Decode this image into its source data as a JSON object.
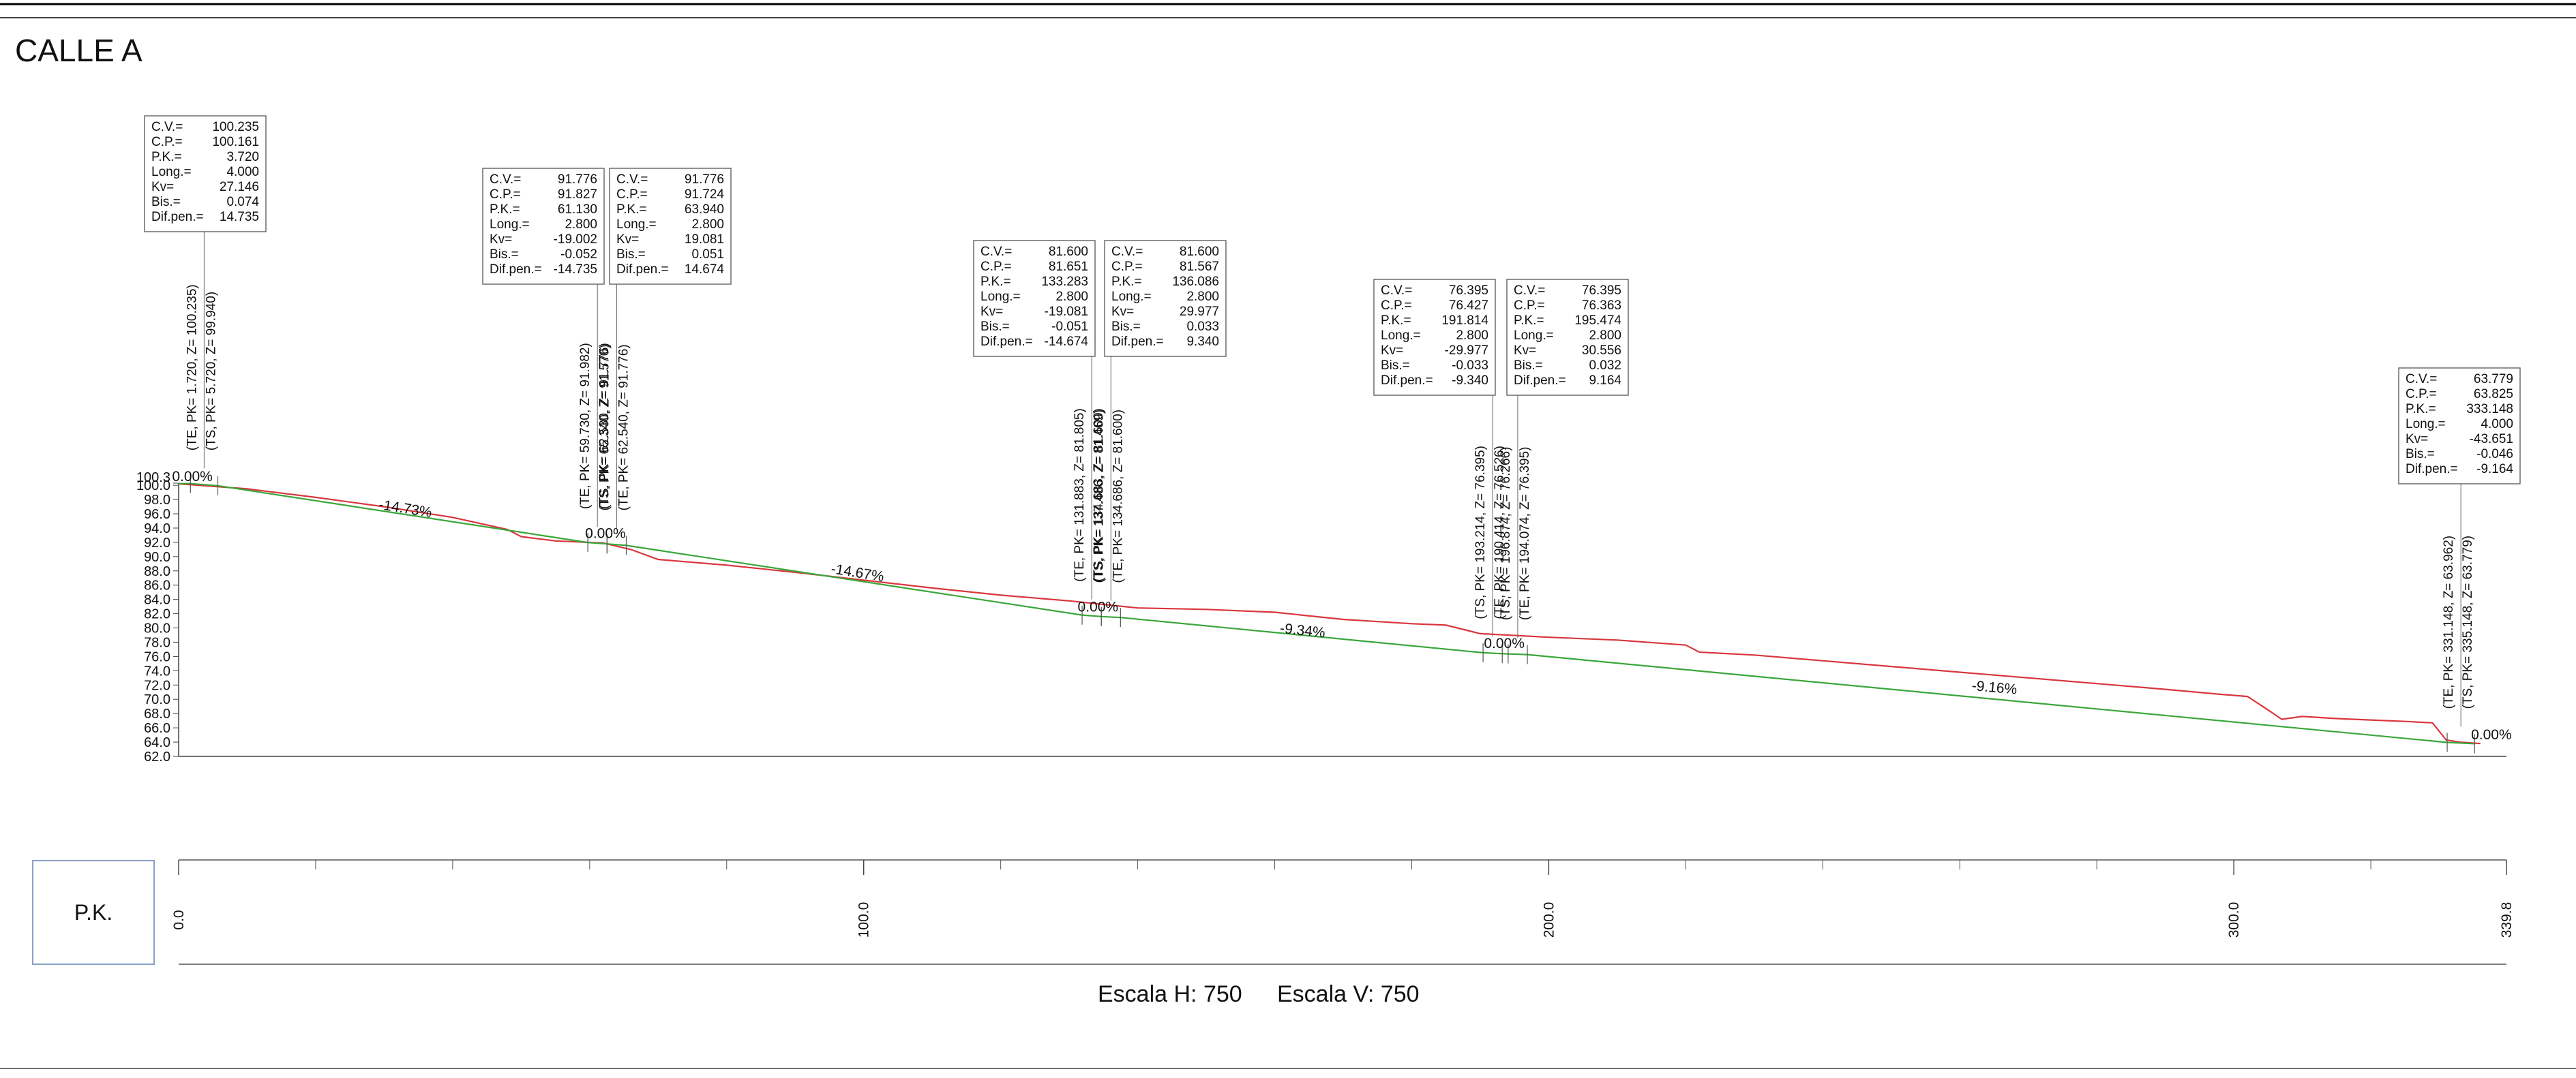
{
  "drawing": {
    "title": "CALLE A",
    "pk_box_label": "P.K.",
    "scale_h_label": "Escala H: 750",
    "scale_v_label": "Escala V: 750"
  },
  "profile": {
    "x_range": [
      0,
      339.8
    ],
    "z_range": [
      62.0,
      100.3
    ],
    "y_tick_labels": [
      "100.3",
      "100.0",
      "98.0",
      "96.0",
      "94.0",
      "92.0",
      "90.0",
      "88.0",
      "86.0",
      "84.0",
      "82.0",
      "80.0",
      "78.0",
      "76.0",
      "74.0",
      "72.0",
      "70.0",
      "68.0",
      "66.0",
      "64.0",
      "62.0"
    ],
    "pk_axis_labels": [
      {
        "pk": 0,
        "label": "0.0"
      },
      {
        "pk": 100,
        "label": "100.0"
      },
      {
        "pk": 200,
        "label": "200.0"
      },
      {
        "pk": 300,
        "label": "300.0"
      },
      {
        "pk": 339.8,
        "label": "339.8"
      }
    ],
    "grade_line": {
      "color": "#3aa63a",
      "points": [
        [
          0,
          100.235
        ],
        [
          1.72,
          100.235
        ],
        [
          5.72,
          99.94
        ],
        [
          59.73,
          91.982
        ],
        [
          62.53,
          91.776
        ],
        [
          65.34,
          91.57
        ],
        [
          131.883,
          81.805
        ],
        [
          134.683,
          81.6
        ],
        [
          137.486,
          81.469
        ],
        [
          190.414,
          76.526
        ],
        [
          193.214,
          76.395
        ],
        [
          196.874,
          76.266
        ],
        [
          331.148,
          63.962
        ],
        [
          335.148,
          63.779
        ]
      ]
    },
    "terrain_line": {
      "color": "#d9363e",
      "points": [
        [
          0,
          100.2
        ],
        [
          10,
          99.5
        ],
        [
          20,
          98.3
        ],
        [
          30,
          97.0
        ],
        [
          40,
          95.5
        ],
        [
          48,
          93.8
        ],
        [
          50,
          92.8
        ],
        [
          55,
          92.2
        ],
        [
          62,
          91.9
        ],
        [
          66,
          91.0
        ],
        [
          70,
          89.6
        ],
        [
          80,
          88.8
        ],
        [
          90,
          87.8
        ],
        [
          100,
          86.7
        ],
        [
          110,
          85.6
        ],
        [
          120,
          84.6
        ],
        [
          130,
          83.8
        ],
        [
          140,
          82.8
        ],
        [
          150,
          82.6
        ],
        [
          160,
          82.2
        ],
        [
          170,
          81.2
        ],
        [
          180,
          80.6
        ],
        [
          185,
          80.4
        ],
        [
          190,
          79.2
        ],
        [
          200,
          78.7
        ],
        [
          210,
          78.3
        ],
        [
          220,
          77.6
        ],
        [
          222,
          76.6
        ],
        [
          230,
          76.2
        ],
        [
          240,
          75.4
        ],
        [
          250,
          74.6
        ],
        [
          260,
          73.8
        ],
        [
          270,
          73.0
        ],
        [
          280,
          72.2
        ],
        [
          290,
          71.4
        ],
        [
          298,
          70.7
        ],
        [
          302,
          70.4
        ],
        [
          305,
          68.5
        ],
        [
          307,
          67.2
        ],
        [
          310,
          67.6
        ],
        [
          315,
          67.3
        ],
        [
          320,
          67.1
        ],
        [
          325,
          66.9
        ],
        [
          329,
          66.7
        ],
        [
          331,
          64.3
        ],
        [
          333,
          64.0
        ],
        [
          336,
          63.8
        ]
      ]
    },
    "slope_labels": [
      {
        "text": "0.00%",
        "pk": 2.0,
        "z": 100.6
      },
      {
        "text": "-14.73%",
        "pk": 33,
        "z": 96.1,
        "angle": 9
      },
      {
        "text": "0.00%",
        "pk": 62.3,
        "z": 92.6
      },
      {
        "text": "-14.67%",
        "pk": 99,
        "z": 87.1,
        "angle": 9
      },
      {
        "text": "0.00%",
        "pk": 134.2,
        "z": 82.3
      },
      {
        "text": "-9.34%",
        "pk": 164,
        "z": 79.0,
        "angle": 6
      },
      {
        "text": "0.00%",
        "pk": 193.5,
        "z": 77.2
      },
      {
        "text": "-9.16%",
        "pk": 265,
        "z": 71.0,
        "angle": 5
      },
      {
        "text": "0.00%",
        "pk": 337.6,
        "z": 64.4
      }
    ],
    "vertical_markers": [
      {
        "lines": [
          "(TE, PK= 1.720, Z= 100.235)",
          "(TS, PK= 5.720, Z= 99.940)"
        ],
        "pk1": 1.72,
        "pk2": 5.72,
        "pk_label": 3.72
      },
      {
        "lines": [
          "(TE, PK= 59.730, Z= 91.982)",
          "(TS, PK= 62.530, Z= 91.776)"
        ],
        "pk1": 59.73,
        "pk2": 62.53,
        "pk_label": 61.13
      },
      {
        "lines": [
          "(TS, PK= 65.340, Z= 91.570)",
          "(TE, PK= 62.540, Z= 91.776)"
        ],
        "pk1": 62.54,
        "pk2": 65.34,
        "pk_label": 63.94
      },
      {
        "lines": [
          "(TE, PK= 131.883, Z= 81.805)",
          "(TS, PK= 134.683, Z= 81.600)"
        ],
        "pk1": 131.883,
        "pk2": 134.683,
        "pk_label": 133.283
      },
      {
        "lines": [
          "(TS, PK= 137.486, Z= 81.469)",
          "(TE, PK= 134.686, Z= 81.600)"
        ],
        "pk1": 134.686,
        "pk2": 137.486,
        "pk_label": 136.086
      },
      {
        "lines": [
          "(TS, PK= 193.214, Z= 76.395)",
          "(TE, PK= 190.414, Z= 76.526)"
        ],
        "pk1": 190.414,
        "pk2": 193.214,
        "pk_label": 191.814
      },
      {
        "lines": [
          "(TS, PK= 196.874, Z= 76.266)",
          "(TE, PK= 194.074, Z= 76.395)"
        ],
        "pk1": 194.074,
        "pk2": 196.874,
        "pk_label": 195.474
      },
      {
        "lines": [
          "(TE, PK= 331.148, Z= 63.962)",
          "(TS, PK= 335.148, Z= 63.779)"
        ],
        "pk1": 331.148,
        "pk2": 335.148,
        "pk_label": 333.148
      }
    ],
    "info_boxes": [
      {
        "pk": 3.72,
        "rows": [
          [
            "C.V.=",
            "100.235"
          ],
          [
            "C.P.=",
            "100.161"
          ],
          [
            "P.K.=",
            "3.720"
          ],
          [
            "Long.=",
            "4.000"
          ],
          [
            "Kv=",
            "27.146"
          ],
          [
            "Bis.=",
            "0.074"
          ],
          [
            "Dif.pen.=",
            "14.735"
          ]
        ]
      },
      {
        "pk": 61.13,
        "rows": [
          [
            "C.V.=",
            "91.776"
          ],
          [
            "C.P.=",
            "91.827"
          ],
          [
            "P.K.=",
            "61.130"
          ],
          [
            "Long.=",
            "2.800"
          ],
          [
            "Kv=",
            "-19.002"
          ],
          [
            "Bis.=",
            "-0.052"
          ],
          [
            "Dif.pen.=",
            "-14.735"
          ]
        ]
      },
      {
        "pk": 63.94,
        "rows": [
          [
            "C.V.=",
            "91.776"
          ],
          [
            "C.P.=",
            "91.724"
          ],
          [
            "P.K.=",
            "63.940"
          ],
          [
            "Long.=",
            "2.800"
          ],
          [
            "Kv=",
            "19.081"
          ],
          [
            "Bis.=",
            "0.051"
          ],
          [
            "Dif.pen.=",
            "14.674"
          ]
        ]
      },
      {
        "pk": 133.283,
        "rows": [
          [
            "C.V.=",
            "81.600"
          ],
          [
            "C.P.=",
            "81.651"
          ],
          [
            "P.K.=",
            "133.283"
          ],
          [
            "Long.=",
            "2.800"
          ],
          [
            "Kv=",
            "-19.081"
          ],
          [
            "Bis.=",
            "-0.051"
          ],
          [
            "Dif.pen.=",
            "-14.674"
          ]
        ]
      },
      {
        "pk": 136.086,
        "rows": [
          [
            "C.V.=",
            "81.600"
          ],
          [
            "C.P.=",
            "81.567"
          ],
          [
            "P.K.=",
            "136.086"
          ],
          [
            "Long.=",
            "2.800"
          ],
          [
            "Kv=",
            "29.977"
          ],
          [
            "Bis.=",
            "0.033"
          ],
          [
            "Dif.pen.=",
            "9.340"
          ]
        ]
      },
      {
        "pk": 191.814,
        "rows": [
          [
            "C.V.=",
            "76.395"
          ],
          [
            "C.P.=",
            "76.427"
          ],
          [
            "P.K.=",
            "191.814"
          ],
          [
            "Long.=",
            "2.800"
          ],
          [
            "Kv=",
            "-29.977"
          ],
          [
            "Bis.=",
            "-0.033"
          ],
          [
            "Dif.pen.=",
            "-9.340"
          ]
        ]
      },
      {
        "pk": 195.474,
        "rows": [
          [
            "C.V.=",
            "76.395"
          ],
          [
            "C.P.=",
            "76.363"
          ],
          [
            "P.K.=",
            "195.474"
          ],
          [
            "Long.=",
            "2.800"
          ],
          [
            "Kv=",
            "30.556"
          ],
          [
            "Bis.=",
            "0.032"
          ],
          [
            "Dif.pen.=",
            "9.164"
          ]
        ]
      },
      {
        "pk": 333.148,
        "rows": [
          [
            "C.V.=",
            "63.779"
          ],
          [
            "C.P.=",
            "63.825"
          ],
          [
            "P.K.=",
            "333.148"
          ],
          [
            "Long.=",
            "4.000"
          ],
          [
            "Kv=",
            "-43.651"
          ],
          [
            "Bis.=",
            "-0.046"
          ],
          [
            "Dif.pen.=",
            "-9.164"
          ]
        ]
      }
    ]
  }
}
